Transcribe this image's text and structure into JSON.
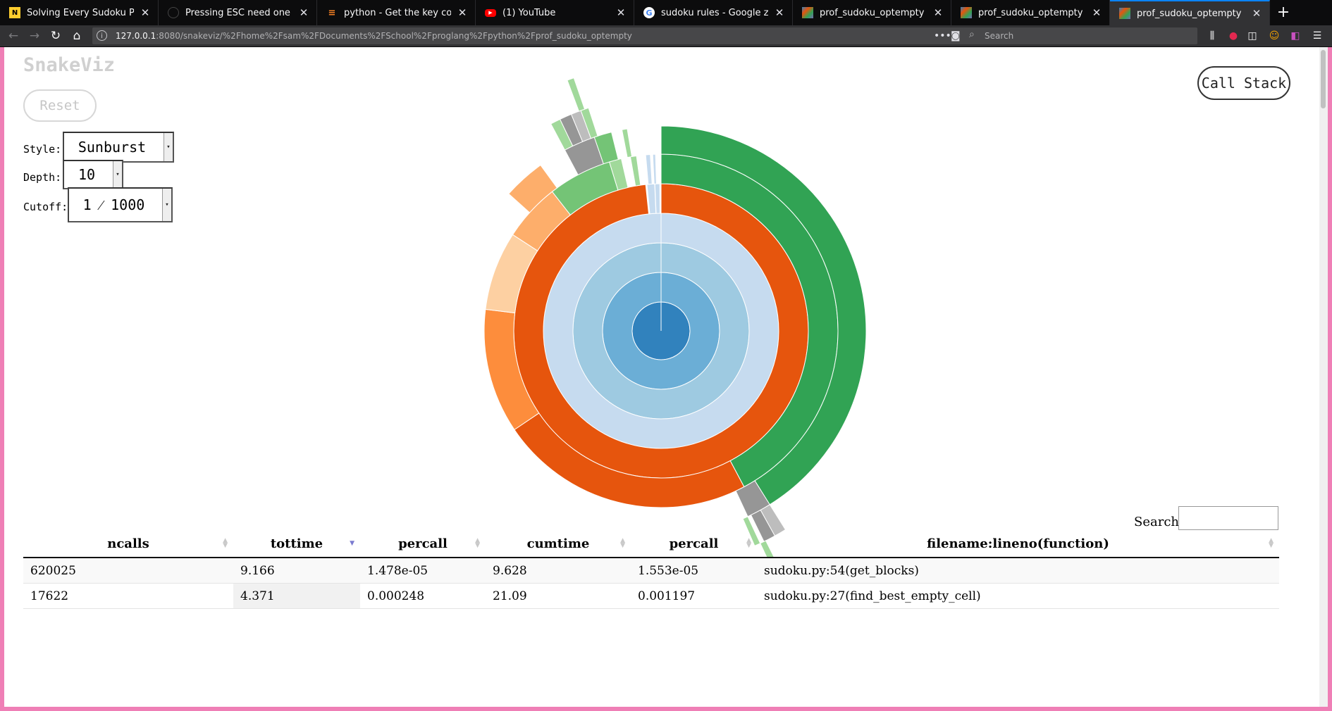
{
  "browser": {
    "tabs": [
      {
        "title": "Solving Every Sudoku Puzzle",
        "favicon": "notion-n-icon",
        "active": false
      },
      {
        "title": "Pressing ESC need one second",
        "favicon": "github-icon",
        "active": false
      },
      {
        "title": "python - Get the key correspon",
        "favicon": "stackoverflow-icon",
        "active": false
      },
      {
        "title": "(1) YouTube",
        "favicon": "youtube-icon",
        "active": false
      },
      {
        "title": "sudoku rules - Google zoeken",
        "favicon": "google-icon",
        "active": false
      },
      {
        "title": "prof_sudoku_optempty",
        "favicon": "snakeviz-icon",
        "active": false
      },
      {
        "title": "prof_sudoku_optempty",
        "favicon": "snakeviz-icon",
        "active": false
      },
      {
        "title": "prof_sudoku_optempty",
        "favicon": "snakeviz-icon",
        "active": true
      }
    ],
    "url_host": "127.0.0.1",
    "url_rest": ":8080/snakeviz/%2Fhome%2Fsam%2FDocuments%2FSchool%2Fproglang%2Fpython%2Fprof_sudoku_optempty",
    "search_placeholder": "Search",
    "colors": {
      "tab_highlight": "#0a84ff",
      "desktop_border": "#ef7fb6"
    }
  },
  "app": {
    "brand": "SnakeViz",
    "reset_label": "Reset",
    "call_stack_label": "Call Stack",
    "style_label": "Style:",
    "style_value": "Sunburst",
    "depth_label": "Depth:",
    "depth_value": "10",
    "cutoff_label": "Cutoff:",
    "cutoff_value": "1 ⁄ 1000",
    "search_label": "Search:"
  },
  "sunburst": {
    "colors": {
      "core": "#3182bd",
      "ring1": "#6baed6",
      "ring2": "#9ecae1",
      "ring3": "#c6dbef",
      "orange_dark": "#e6550d",
      "orange_mid": "#fd8d3c",
      "orange_light": "#fdae6b",
      "orange_pale": "#fdd0a2",
      "green_dark": "#31a354",
      "green_mid": "#74c476",
      "green_light": "#a1d99b",
      "gray_dark": "#969696",
      "gray_light": "#bdbdbd"
    }
  },
  "table": {
    "columns": [
      "ncalls",
      "tottime",
      "percall",
      "cumtime",
      "percall",
      "filename:lineno(function)"
    ],
    "sorted_column": 1,
    "rows": [
      [
        "620025",
        "9.166",
        "1.478e-05",
        "9.628",
        "1.553e-05",
        "sudoku.py:54(get_blocks)"
      ],
      [
        "17622",
        "4.371",
        "0.000248",
        "21.09",
        "0.001197",
        "sudoku.py:27(find_best_empty_cell)"
      ]
    ]
  }
}
